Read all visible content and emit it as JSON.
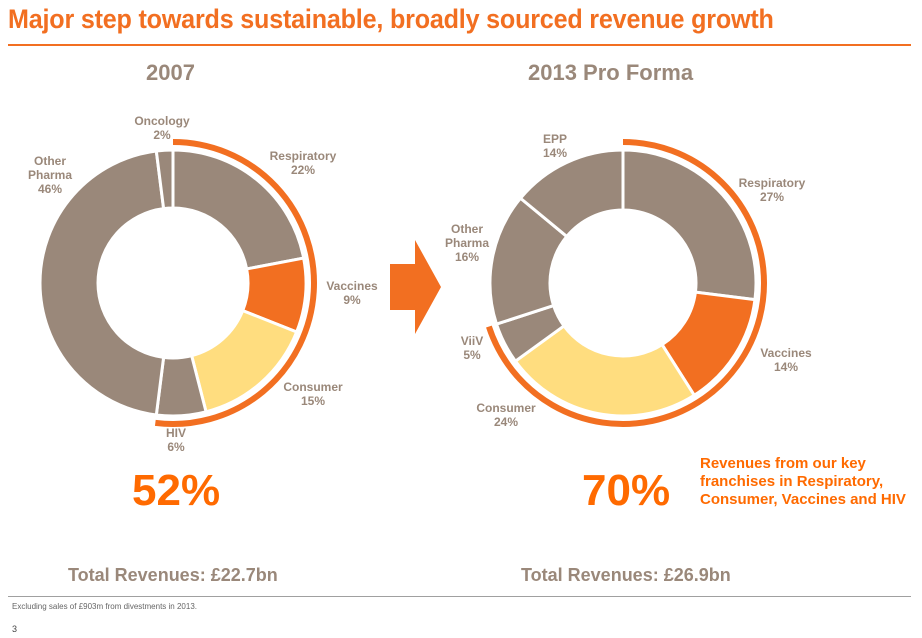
{
  "title": "Major step towards sustainable, broadly sourced revenue growth",
  "colors": {
    "accent": "#F26F21",
    "grey_segment": "#9A887A",
    "orange_segment": "#F26F21",
    "yellow_segment": "#FFDD7F",
    "label": "#9A887A",
    "highlight_text": "#FF6A00"
  },
  "chart_data": [
    {
      "type": "pie",
      "title": "2007",
      "start": "top, clockwise",
      "slices": [
        {
          "label": "Respiratory",
          "value": 22,
          "display": "22%",
          "color": "grey",
          "key_franchise": true
        },
        {
          "label": "Vaccines",
          "value": 9,
          "display": "9%",
          "color": "orange",
          "key_franchise": true
        },
        {
          "label": "Consumer",
          "value": 15,
          "display": "15%",
          "color": "yellow",
          "key_franchise": true
        },
        {
          "label": "HIV",
          "value": 6,
          "display": "6%",
          "color": "grey",
          "key_franchise": true
        },
        {
          "label": "Other Pharma",
          "value": 46,
          "display": "46%",
          "color": "grey",
          "key_franchise": false
        },
        {
          "label": "Oncology",
          "value": 2,
          "display": "2%",
          "color": "grey",
          "key_franchise": false
        }
      ],
      "key_franchise_share": "52%",
      "total_revenues": "Total Revenues: £22.7bn"
    },
    {
      "type": "pie",
      "title": "2013 Pro Forma",
      "start": "top, clockwise",
      "slices": [
        {
          "label": "Respiratory",
          "value": 27,
          "display": "27%",
          "color": "grey",
          "key_franchise": true
        },
        {
          "label": "Vaccines",
          "value": 14,
          "display": "14%",
          "color": "orange",
          "key_franchise": true
        },
        {
          "label": "Consumer",
          "value": 24,
          "display": "24%",
          "color": "yellow",
          "key_franchise": true
        },
        {
          "label": "ViiV",
          "value": 5,
          "display": "5%",
          "color": "grey",
          "key_franchise": true
        },
        {
          "label": "Other Pharma",
          "value": 16,
          "display": "16%",
          "color": "grey",
          "key_franchise": false
        },
        {
          "label": "EPP",
          "value": 14,
          "display": "14%",
          "color": "grey",
          "key_franchise": false
        }
      ],
      "key_franchise_share": "70%",
      "total_revenues": "Total Revenues: £26.9bn"
    }
  ],
  "franchise_note": "Revenues from our key franchises in Respiratory, Consumer, Vaccines and HIV",
  "footnote": "Excluding sales of £903m from divestments in 2013.",
  "page_number": "3"
}
